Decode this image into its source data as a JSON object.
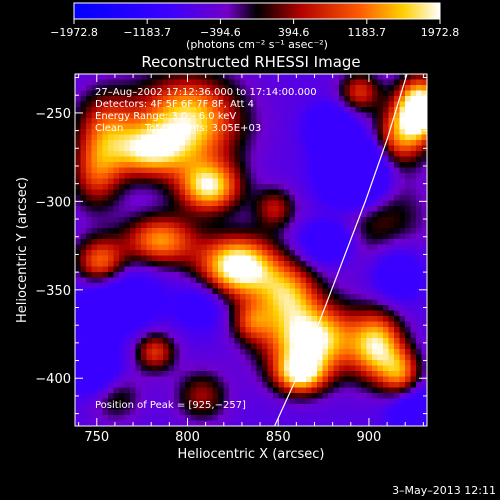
{
  "chart_data": {
    "type": "heatmap",
    "title": "Reconstructed RHESSI Image",
    "xlabel": "Heliocentric X (arcsec)",
    "ylabel": "Heliocentric Y (arcsec)",
    "xlim": [
      738,
      932
    ],
    "ylim": [
      -427,
      -228
    ],
    "x_ticks": [
      750,
      800,
      850,
      900
    ],
    "y_ticks": [
      -250,
      -300,
      -350,
      -400
    ],
    "colorbar": {
      "range": [
        -1972.8,
        1972.8
      ],
      "tick_values": [
        -1972.8,
        -1183.7,
        -394.6,
        394.6,
        1183.7,
        1972.8
      ],
      "tick_labels": [
        "−1972.8",
        "−1183.7",
        "−394.6",
        "394.6",
        "1183.7",
        "1972.8"
      ],
      "unit_label": "(photons cm⁻² s⁻¹ asec⁻²)"
    },
    "peak_position": [
      925,
      -257
    ],
    "annotations": [
      "27–Aug–2002 17:12:36.000 to 17:14:00.000",
      "Detectors: 4F 5F 6F 7F 8F, Att 4",
      "Energy Range: 3.0 – 6.0 keV",
      "Clean",
      "Total counts: 3.05E+03"
    ],
    "peak_label": "Position of Peak = [925,−257]",
    "blobs": [
      {
        "x": 928,
        "y": -248,
        "sx": 9,
        "sy": 12,
        "a": 1.7
      },
      {
        "x": 915,
        "y": -265,
        "sx": 10,
        "sy": 12,
        "a": 0.8
      },
      {
        "x": 895,
        "y": -238,
        "sx": 8,
        "sy": 8,
        "a": 0.7
      },
      {
        "x": 905,
        "y": -310,
        "sx": 18,
        "sy": 18,
        "a": 0.5
      },
      {
        "x": 800,
        "y": -255,
        "sx": 20,
        "sy": 18,
        "a": 1.25
      },
      {
        "x": 778,
        "y": -272,
        "sx": 14,
        "sy": 10,
        "a": 0.9
      },
      {
        "x": 755,
        "y": -258,
        "sx": 12,
        "sy": 15,
        "a": 0.7
      },
      {
        "x": 812,
        "y": -292,
        "sx": 12,
        "sy": 10,
        "a": 1.2
      },
      {
        "x": 750,
        "y": -285,
        "sx": 10,
        "sy": 14,
        "a": 0.7
      },
      {
        "x": 785,
        "y": -322,
        "sx": 14,
        "sy": 10,
        "a": 1.0
      },
      {
        "x": 752,
        "y": -335,
        "sx": 10,
        "sy": 10,
        "a": 1.0
      },
      {
        "x": 848,
        "y": -304,
        "sx": 8,
        "sy": 8,
        "a": 0.6
      },
      {
        "x": 828,
        "y": -337,
        "sx": 15,
        "sy": 12,
        "a": 1.5
      },
      {
        "x": 855,
        "y": -352,
        "sx": 12,
        "sy": 12,
        "a": 0.9
      },
      {
        "x": 868,
        "y": -378,
        "sx": 18,
        "sy": 14,
        "a": 1.4
      },
      {
        "x": 862,
        "y": -398,
        "sx": 10,
        "sy": 8,
        "a": 1.05
      },
      {
        "x": 835,
        "y": -368,
        "sx": 8,
        "sy": 8,
        "a": 0.6
      },
      {
        "x": 905,
        "y": -382,
        "sx": 10,
        "sy": 14,
        "a": 1.1
      },
      {
        "x": 918,
        "y": -398,
        "sx": 8,
        "sy": 10,
        "a": 0.8
      },
      {
        "x": 782,
        "y": -385,
        "sx": 8,
        "sy": 8,
        "a": 0.75
      },
      {
        "x": 808,
        "y": -410,
        "sx": 10,
        "sy": 10,
        "a": 0.55
      },
      {
        "x": 760,
        "y": -410,
        "sx": 10,
        "sy": 10,
        "a": 0.45
      },
      {
        "x": 893,
        "y": -284,
        "sx": 12,
        "sy": 13,
        "a": -1.5
      },
      {
        "x": 878,
        "y": -258,
        "sx": 8,
        "sy": 8,
        "a": -0.7
      },
      {
        "x": 760,
        "y": -355,
        "sx": 16,
        "sy": 14,
        "a": -0.6
      },
      {
        "x": 808,
        "y": -358,
        "sx": 10,
        "sy": 10,
        "a": -0.4
      },
      {
        "x": 878,
        "y": -323,
        "sx": 10,
        "sy": 8,
        "a": -0.7
      },
      {
        "x": 915,
        "y": -340,
        "sx": 10,
        "sy": 12,
        "a": -0.5
      },
      {
        "x": 750,
        "y": -397,
        "sx": 10,
        "sy": 10,
        "a": -0.6
      },
      {
        "x": 925,
        "y": -418,
        "sx": 10,
        "sy": 10,
        "a": -0.6
      }
    ]
  },
  "limb_curve": [
    [
      848,
      -427
    ],
    [
      860,
      -400
    ],
    [
      872,
      -370
    ],
    [
      885,
      -335
    ],
    [
      898,
      -300
    ],
    [
      910,
      -265
    ],
    [
      921,
      -228
    ]
  ],
  "footer": {
    "date": "3–May–2013 12:11"
  }
}
